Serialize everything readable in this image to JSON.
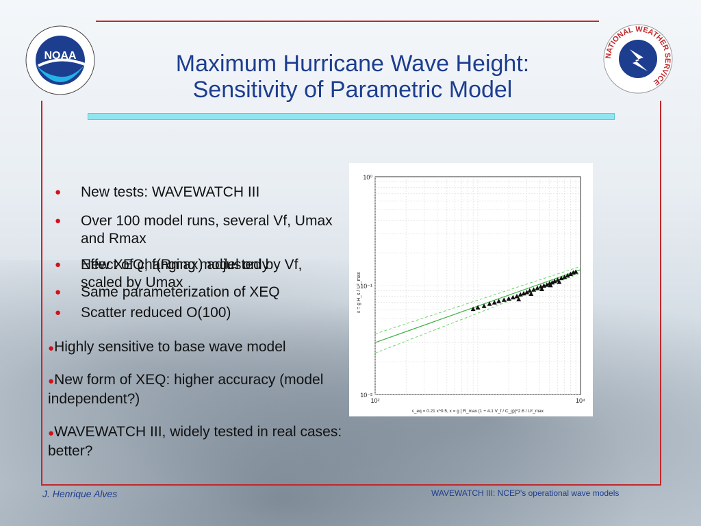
{
  "slide": {
    "title_line1": "Maximum Hurricane Wave Height:",
    "title_line2": "Sensitivity of Parametric Model",
    "bullets": [
      {
        "text": "New tests: WAVEWATCH III"
      },
      {
        "text": "Over 100 model runs, several Vf, Umax and Rmax"
      },
      {
        "text": "New XEQ, f(Rmax) adjusted by Vf, scaled by Umax"
      },
      {
        "text": "Effect of changing model only"
      },
      {
        "text": "Same parameterization of XEQ"
      },
      {
        "text": "Scatter reduced O(100)"
      }
    ],
    "lower_points": [
      {
        "text": "Highly sensitive to base wave model"
      },
      {
        "text": "New form of XEQ: higher accuracy (model independent?)"
      },
      {
        "text": "WAVEWATCH III, widely tested in real cases: better?"
      }
    ],
    "footer_author": "J. Henrique Alves",
    "footer_caption": "WAVEWATCH III: NCEP's operational wave models"
  },
  "logos": {
    "left": {
      "text": "NOAA"
    },
    "right": {
      "text": "NATIONAL WEATHER SERVICE"
    }
  },
  "chart_data": {
    "type": "scatter",
    "xscale": "log",
    "yscale": "log",
    "xlim": [
      100,
      10000
    ],
    "ylim": [
      0.01,
      1
    ],
    "x_ticks": [
      "10²",
      "10⁴"
    ],
    "y_ticks": [
      "10⁰",
      "10⁻¹",
      "10⁻²"
    ],
    "ylabel": "ε = g H_s / U²_max",
    "xlabel": "ε_eq = 0.21 x^0.5, x = g [ R_max (1 + 4.1 V_f / C_g)]^2.6 / U²_max",
    "grid": true,
    "points": [
      [
        900,
        0.061
      ],
      [
        1000,
        0.063
      ],
      [
        1150,
        0.065
      ],
      [
        1300,
        0.068
      ],
      [
        1450,
        0.07
      ],
      [
        1600,
        0.072
      ],
      [
        1800,
        0.074
      ],
      [
        2000,
        0.076
      ],
      [
        2200,
        0.078
      ],
      [
        2400,
        0.08
      ],
      [
        2600,
        0.083
      ],
      [
        2800,
        0.085
      ],
      [
        3000,
        0.087
      ],
      [
        3200,
        0.09
      ],
      [
        3500,
        0.092
      ],
      [
        3800,
        0.095
      ],
      [
        4100,
        0.098
      ],
      [
        4400,
        0.1
      ],
      [
        4700,
        0.102
      ],
      [
        5000,
        0.105
      ],
      [
        5300,
        0.107
      ],
      [
        5600,
        0.11
      ],
      [
        6000,
        0.113
      ],
      [
        6500,
        0.117
      ],
      [
        7000,
        0.12
      ],
      [
        7500,
        0.124
      ],
      [
        8000,
        0.128
      ],
      [
        8500,
        0.132
      ],
      [
        9000,
        0.134
      ],
      [
        2500,
        0.075
      ],
      [
        3300,
        0.084
      ],
      [
        4200,
        0.093
      ],
      [
        5100,
        0.101
      ],
      [
        6200,
        0.108
      ]
    ],
    "fit_lines": {
      "center": [
        [
          100,
          0.03
        ],
        [
          10000,
          0.14
        ]
      ],
      "upper": [
        [
          100,
          0.036
        ],
        [
          10000,
          0.15
        ]
      ],
      "lower": [
        [
          100,
          0.024
        ],
        [
          10000,
          0.13
        ]
      ]
    }
  }
}
